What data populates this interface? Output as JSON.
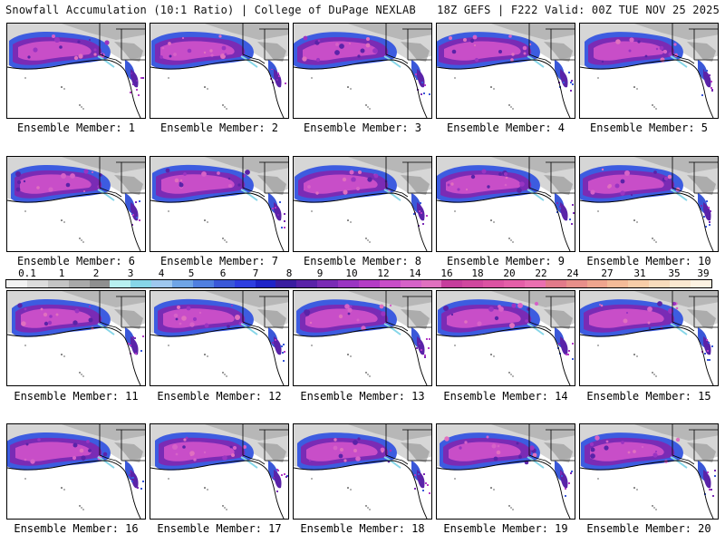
{
  "header": {
    "left_title": "Snowfall Accumulation (10:1 Ratio) | College of DuPage NEXLAB",
    "right_title": "18Z GEFS | F222 Valid: 00Z TUE NOV 25 2025"
  },
  "panels": [
    {
      "label": "Ensemble Member: 1"
    },
    {
      "label": "Ensemble Member: 2"
    },
    {
      "label": "Ensemble Member: 3"
    },
    {
      "label": "Ensemble Member: 4"
    },
    {
      "label": "Ensemble Member: 5"
    },
    {
      "label": "Ensemble Member: 6"
    },
    {
      "label": "Ensemble Member: 7"
    },
    {
      "label": "Ensemble Member: 8"
    },
    {
      "label": "Ensemble Member: 9"
    },
    {
      "label": "Ensemble Member: 10"
    },
    {
      "label": "Ensemble Member: 11"
    },
    {
      "label": "Ensemble Member: 12"
    },
    {
      "label": "Ensemble Member: 13"
    },
    {
      "label": "Ensemble Member: 14"
    },
    {
      "label": "Ensemble Member: 15"
    },
    {
      "label": "Ensemble Member: 16"
    },
    {
      "label": "Ensemble Member: 17"
    },
    {
      "label": "Ensemble Member: 18"
    },
    {
      "label": "Ensemble Member: 19"
    },
    {
      "label": "Ensemble Member: 20"
    }
  ],
  "colorbar": {
    "labels": [
      "0.1",
      "1",
      "2",
      "3",
      "4",
      "5",
      "6",
      "7",
      "8",
      "9",
      "10",
      "12",
      "14",
      "16",
      "18",
      "20",
      "22",
      "24",
      "27",
      "31",
      "35",
      "39"
    ],
    "colors": [
      "#f2f2f2",
      "#dcdcdc",
      "#c4c4c4",
      "#a9a9a9",
      "#8f8f8f",
      "#b8f0f0",
      "#86d6e8",
      "#9ec8ef",
      "#6fa5e6",
      "#4f7fe0",
      "#3a58d8",
      "#2e3ee0",
      "#1f24c8",
      "#3a1ea0",
      "#5a23a8",
      "#7a2bb5",
      "#9a34c2",
      "#b43cc6",
      "#c84ec8",
      "#d662c8",
      "#e070bf",
      "#c63d9c",
      "#d0479e",
      "#db52a2",
      "#e45ea8",
      "#ea6fb0",
      "#e27a8a",
      "#e88f8a",
      "#efa58e",
      "#f4bb98",
      "#f7cda8",
      "#f9dcbc",
      "#fbe8d0",
      "#fdf2e2"
    ]
  },
  "colors": {
    "land": "#ffffff",
    "border": "#000000",
    "snow_light": "#c9c9c9",
    "snow_blue": "#3d5ce0",
    "snow_purple": "#8a2fc0",
    "snow_magenta": "#d04ab8"
  }
}
